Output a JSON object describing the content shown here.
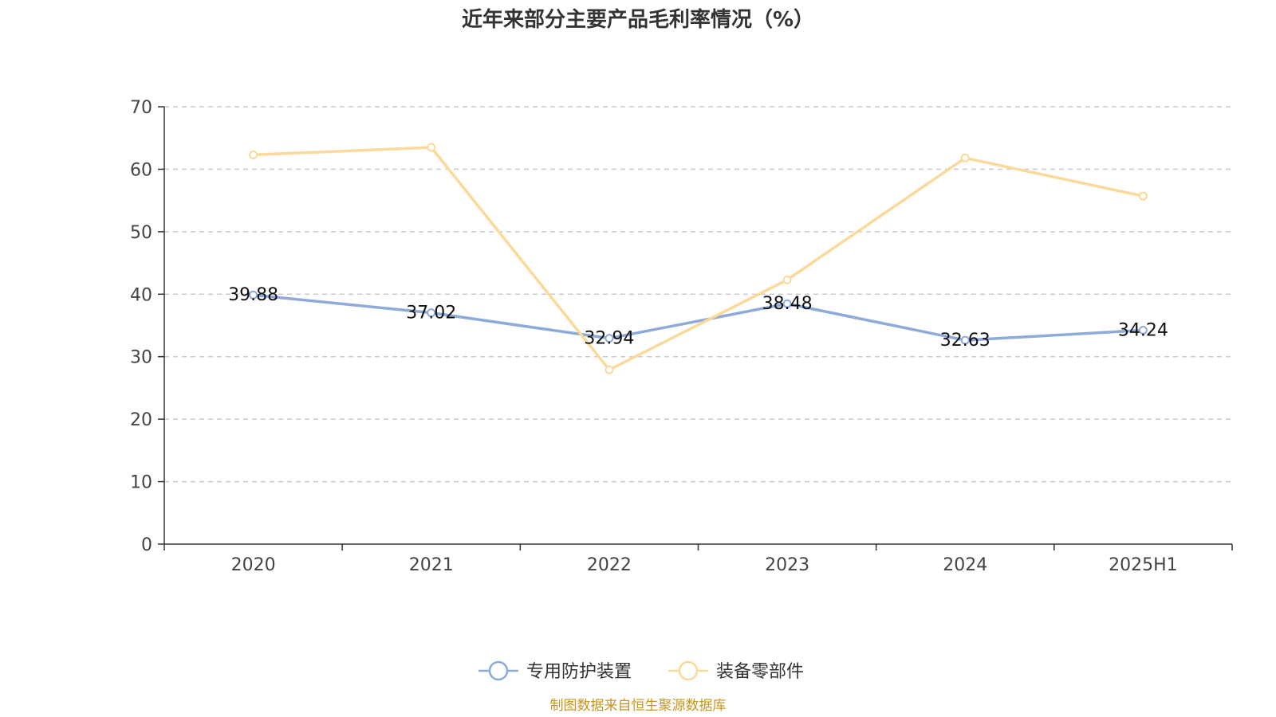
{
  "chart_data": {
    "type": "line",
    "title": "近年来部分主要产品毛利率情况（%）",
    "categories": [
      "2020",
      "2021",
      "2022",
      "2023",
      "2024",
      "2025H1"
    ],
    "ylim": [
      0,
      70
    ],
    "yticks": [
      0,
      10,
      20,
      30,
      40,
      50,
      60,
      70
    ],
    "grid": true,
    "legend_position": "bottom-center",
    "series": [
      {
        "name": "专用防护装置",
        "color": "#8eaad8",
        "values": [
          39.88,
          37.02,
          32.94,
          38.48,
          32.63,
          34.24
        ],
        "labels": [
          "39.88",
          "37.02",
          "32.94",
          "38.48",
          "32.63",
          "34.24"
        ]
      },
      {
        "name": "装备零部件",
        "color": "#fad99a",
        "values": [
          62.3,
          63.5,
          27.9,
          42.3,
          61.8,
          55.7
        ]
      }
    ]
  },
  "source": "制图数据来自恒生聚源数据库"
}
